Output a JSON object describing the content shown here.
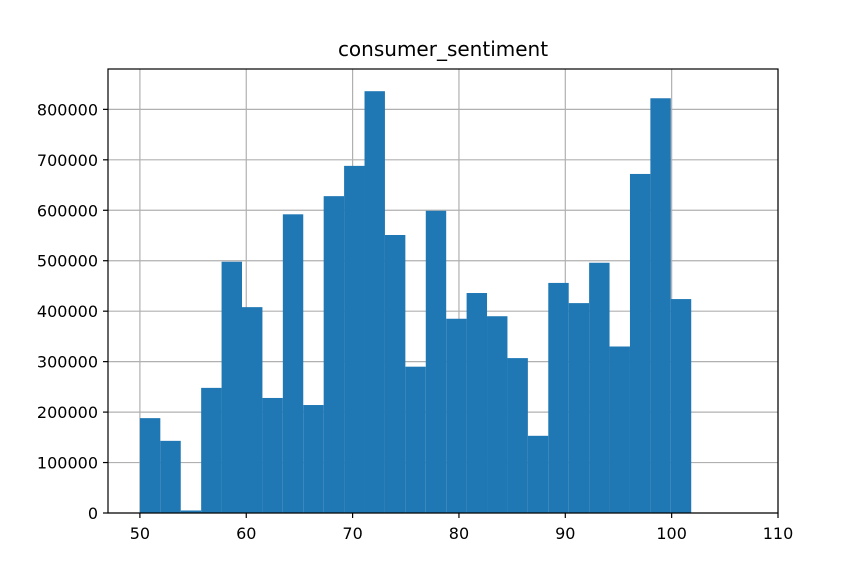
{
  "chart_data": {
    "type": "bar",
    "title": "consumer_sentiment",
    "xlabel": "",
    "ylabel": "",
    "xlim": [
      47,
      110
    ],
    "ylim": [
      0,
      880000
    ],
    "x_ticks": [
      50,
      60,
      70,
      80,
      90,
      100,
      110
    ],
    "y_ticks": [
      0,
      100000,
      200000,
      300000,
      400000,
      500000,
      600000,
      700000,
      800000
    ],
    "grid": true,
    "bar_color": "#1f77b4",
    "bins": [
      {
        "start": 50.0,
        "end": 51.92,
        "count": 188000
      },
      {
        "start": 51.92,
        "end": 53.84,
        "count": 143000
      },
      {
        "start": 53.84,
        "end": 55.76,
        "count": 5000
      },
      {
        "start": 55.76,
        "end": 57.68,
        "count": 248000
      },
      {
        "start": 57.68,
        "end": 59.6,
        "count": 498000
      },
      {
        "start": 59.6,
        "end": 61.52,
        "count": 408000
      },
      {
        "start": 61.52,
        "end": 63.44,
        "count": 228000
      },
      {
        "start": 63.44,
        "end": 65.36,
        "count": 592000
      },
      {
        "start": 65.36,
        "end": 67.28,
        "count": 214000
      },
      {
        "start": 67.28,
        "end": 69.2,
        "count": 628000
      },
      {
        "start": 69.2,
        "end": 71.12,
        "count": 688000
      },
      {
        "start": 71.12,
        "end": 73.04,
        "count": 836000
      },
      {
        "start": 73.04,
        "end": 74.96,
        "count": 551000
      },
      {
        "start": 74.96,
        "end": 76.88,
        "count": 290000
      },
      {
        "start": 76.88,
        "end": 78.8,
        "count": 599000
      },
      {
        "start": 78.8,
        "end": 80.72,
        "count": 385000
      },
      {
        "start": 80.72,
        "end": 82.64,
        "count": 436000
      },
      {
        "start": 82.64,
        "end": 84.56,
        "count": 390000
      },
      {
        "start": 84.56,
        "end": 86.48,
        "count": 307000
      },
      {
        "start": 86.48,
        "end": 88.4,
        "count": 153000
      },
      {
        "start": 88.4,
        "end": 90.32,
        "count": 456000
      },
      {
        "start": 90.32,
        "end": 92.24,
        "count": 416000
      },
      {
        "start": 92.24,
        "end": 94.16,
        "count": 496000
      },
      {
        "start": 94.16,
        "end": 96.08,
        "count": 330000
      },
      {
        "start": 96.08,
        "end": 98.0,
        "count": 672000
      },
      {
        "start": 98.0,
        "end": 99.92,
        "count": 822000
      },
      {
        "start": 99.92,
        "end": 101.84,
        "count": 424000
      }
    ]
  }
}
